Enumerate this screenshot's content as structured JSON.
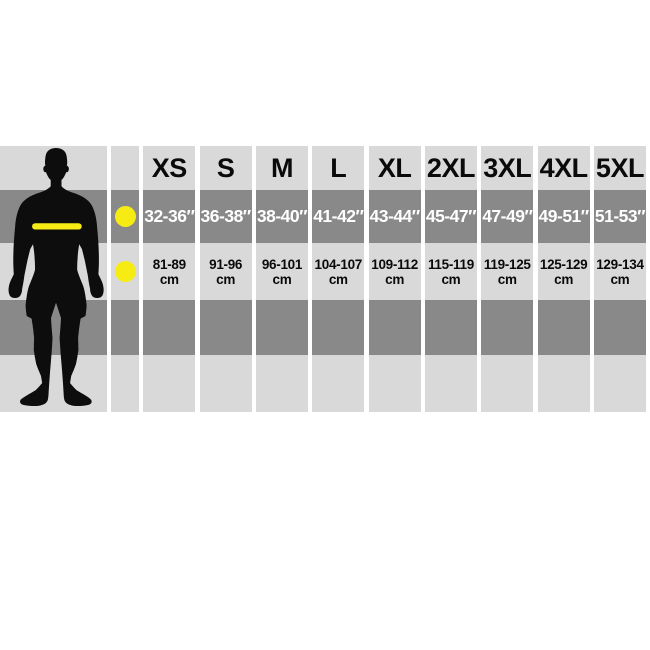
{
  "colors": {
    "background": "#ffffff",
    "band_light": "#d9d9d9",
    "band_dark": "#898989",
    "accent_yellow": "#f6ec13",
    "silhouette_black": "#0d0d0d",
    "text_dark": "#0a0a0a",
    "text_light": "#ffffff"
  },
  "figure": {
    "silhouette": "male-figure-front",
    "marker": "yellow-chest-band"
  },
  "chart_data": {
    "type": "table",
    "columns": [
      "XS",
      "S",
      "M",
      "L",
      "XL",
      "2XL",
      "3XL",
      "4XL",
      "5XL"
    ],
    "rows": [
      {
        "name": "chest-inches",
        "marker": "yellow-dot",
        "values": [
          "32-36″",
          "36-38″",
          "38-40″",
          "41-42″",
          "43-44″",
          "45-47″",
          "47-49″",
          "49-51″",
          "51-53″"
        ]
      },
      {
        "name": "chest-cm",
        "marker": "yellow-dot",
        "unit": "cm",
        "values": [
          "81-89",
          "91-96",
          "96-101",
          "104-107",
          "109-112",
          "115-119",
          "119-125",
          "125-129",
          "129-134"
        ]
      }
    ]
  }
}
